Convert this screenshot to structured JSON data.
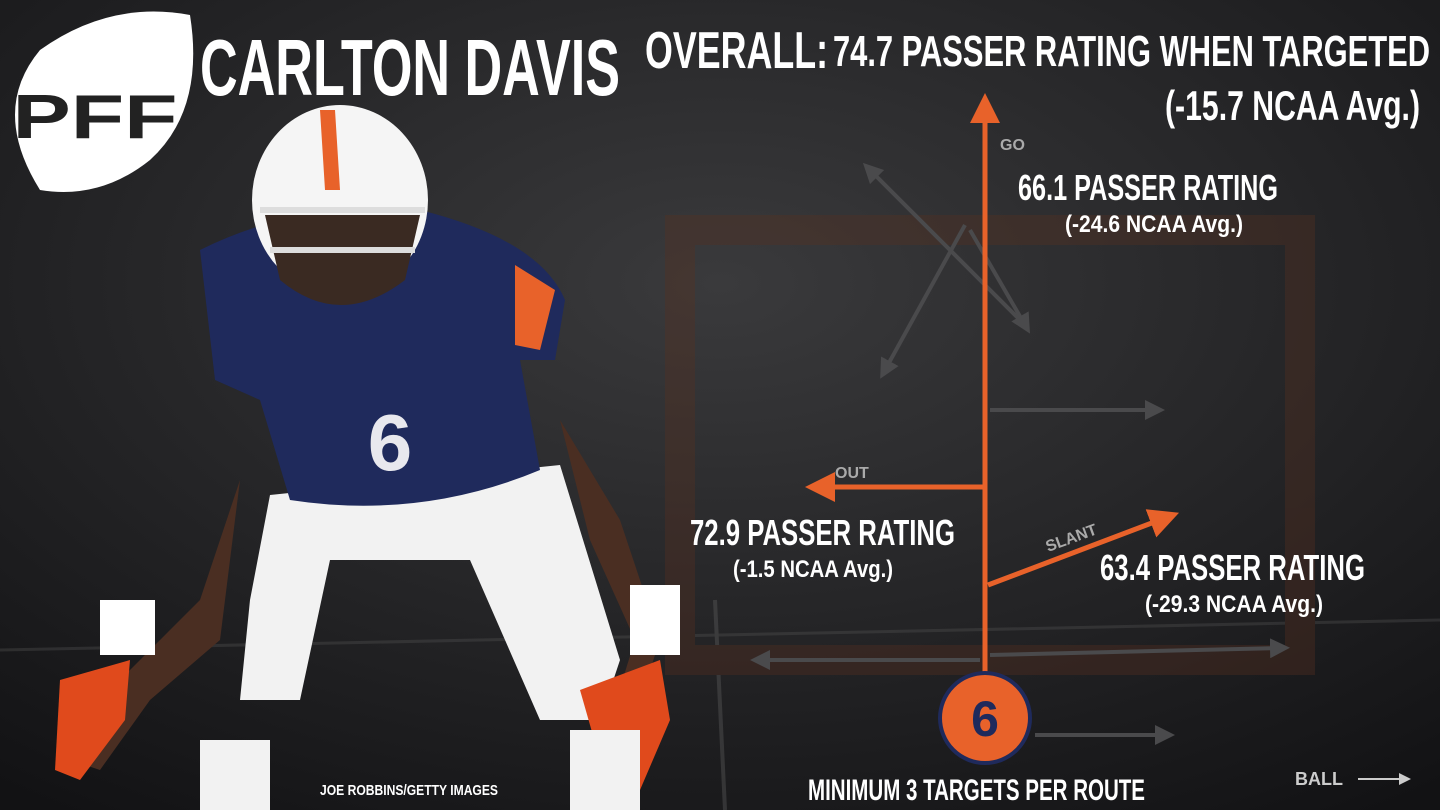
{
  "logo": "PFF",
  "player_name": "CARLTON DAVIS",
  "overall": {
    "label": "OVERALL:",
    "text": "74.7 PASSER RATING WHEN TARGETED",
    "comparison": "(-15.7 NCAA Avg.)"
  },
  "routes": [
    {
      "name": "GO",
      "rating": "66.1 PASSER RATING",
      "comparison": "(-24.6 NCAA Avg.)"
    },
    {
      "name": "OUT",
      "rating": "72.9 PASSER RATING",
      "comparison": "(-1.5 NCAA Avg.)"
    },
    {
      "name": "SLANT",
      "rating": "63.4 PASSER RATING",
      "comparison": "(-29.3 NCAA Avg.)"
    }
  ],
  "jersey_number": "6",
  "footnote": "MINIMUM 3 TARGETS PER ROUTE",
  "photo_credit": "JOE ROBBINS/GETTY IMAGES",
  "ball_label": "BALL"
}
